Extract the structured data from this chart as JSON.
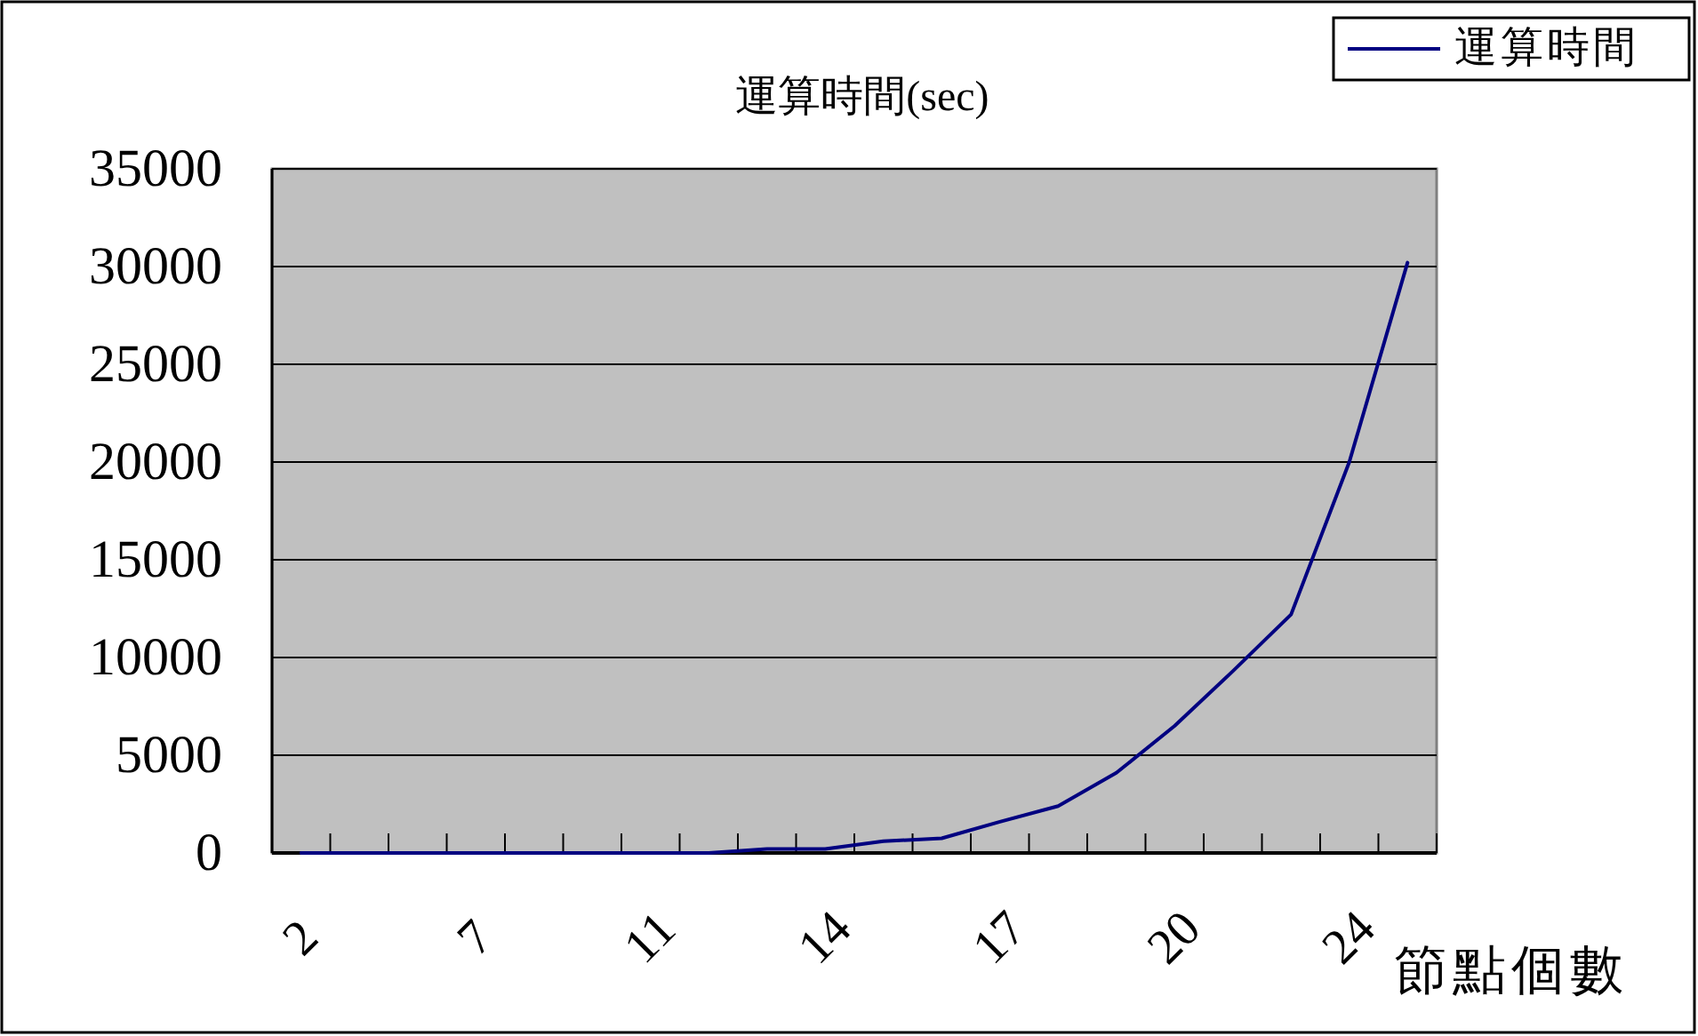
{
  "chart_data": {
    "type": "line",
    "title": "運算時間(sec)",
    "xlabel": "節點個數",
    "categories": [
      "2",
      null,
      null,
      "7",
      null,
      null,
      "11",
      null,
      null,
      "14",
      null,
      null,
      "17",
      null,
      null,
      "20",
      null,
      null,
      "24",
      null
    ],
    "series": [
      {
        "name": "運算時間",
        "color": "#000080",
        "values": [
          0,
          0,
          0,
          0,
          0,
          0,
          0,
          0,
          200,
          200,
          600,
          750,
          1600,
          2400,
          4100,
          6500,
          9300,
          12200,
          20000,
          30200
        ]
      }
    ],
    "ylim": [
      0,
      35000
    ],
    "yticks": [
      0,
      5000,
      10000,
      15000,
      20000,
      25000,
      30000,
      35000
    ],
    "grid": "y",
    "legend": "top right"
  }
}
